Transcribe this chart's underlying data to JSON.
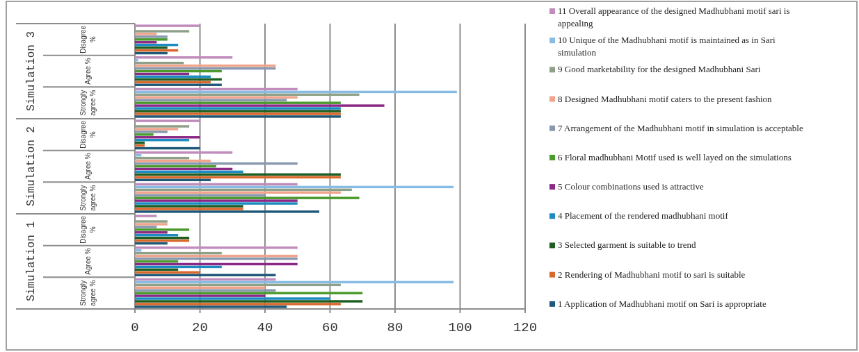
{
  "chart_data": {
    "type": "bar",
    "orientation": "horizontal",
    "categories": [
      "Disagree %",
      "Agree %",
      "Strongly agree %",
      "Disagree %",
      "Agree %",
      "Strongly agree %",
      "Disagree %",
      "Agree %",
      "Strongly agree %"
    ],
    "annotations": [
      "Simulation 3",
      "Simulation 2",
      "Simulation 1"
    ],
    "series": [
      {
        "name": "1 Application of Madhubhani motif on Sari is appropriate",
        "color": "#1f5878",
        "values": [
          10,
          26.7,
          63.3,
          20,
          23.3,
          56.7,
          10,
          43.3,
          46.7
        ]
      },
      {
        "name": "2 Rendering of Madhubhani motif to sari is suitable",
        "color": "#d9682b",
        "values": [
          13.3,
          23.3,
          63.3,
          3,
          63.3,
          33.3,
          16.7,
          20,
          63.3
        ]
      },
      {
        "name": "3 Selected garment is suitable to trend",
        "color": "#1d5e22",
        "values": [
          10,
          26.7,
          63.3,
          3,
          63.3,
          33.3,
          16.7,
          13.3,
          70
        ]
      },
      {
        "name": "4 Placement of the rendered madhubhani motif",
        "color": "#1b8bc2",
        "values": [
          13.3,
          23.3,
          63.3,
          16.7,
          33.3,
          50,
          13.3,
          26.7,
          60
        ]
      },
      {
        "name": "5 Colour combinations used is attractive",
        "color": "#8b2a86",
        "values": [
          6.7,
          16.7,
          76.7,
          20,
          30,
          50,
          10,
          50,
          40
        ]
      },
      {
        "name": "6 Floral madhubhani Motif used is well layed on the simulations",
        "color": "#4a9a2c",
        "values": [
          10,
          26.7,
          63.3,
          5.7,
          25,
          69,
          16.7,
          13.3,
          70
        ]
      },
      {
        "name": "7 Arrangement of the Madhubhani motif in simulation is acceptable",
        "color": "#8898ae",
        "values": [
          10,
          43.3,
          46.7,
          10,
          50,
          40,
          6.7,
          50,
          43.3
        ]
      },
      {
        "name": "8 Designed Madhubhani motif caters to the present fashion",
        "color": "#f0a48c",
        "values": [
          6.7,
          43.3,
          50,
          13.3,
          23.3,
          63.3,
          10,
          50,
          40
        ]
      },
      {
        "name": "9 Good marketability for the designed Madhubhani Sari",
        "color": "#8ea088",
        "values": [
          16.7,
          15,
          69,
          16.7,
          16.7,
          66.7,
          10,
          26.7,
          63.3
        ]
      },
      {
        "name": "10 Unique of the Madhubhani motif is maintained as in Sari simulation",
        "color": "#88bce4",
        "values": [
          0,
          1,
          99,
          0,
          2,
          98,
          0,
          2,
          98
        ]
      },
      {
        "name": "11 Overall appearance of the designed Madhubhani motif sari is appealing",
        "color": "#c08cbc",
        "values": [
          20,
          30,
          50,
          20,
          30,
          50,
          6.7,
          50,
          43.3
        ]
      }
    ],
    "xlim": [
      0,
      120
    ],
    "xticks": [
      0,
      20,
      40,
      60,
      80,
      100,
      120
    ],
    "grid": "x",
    "legend": "right"
  }
}
